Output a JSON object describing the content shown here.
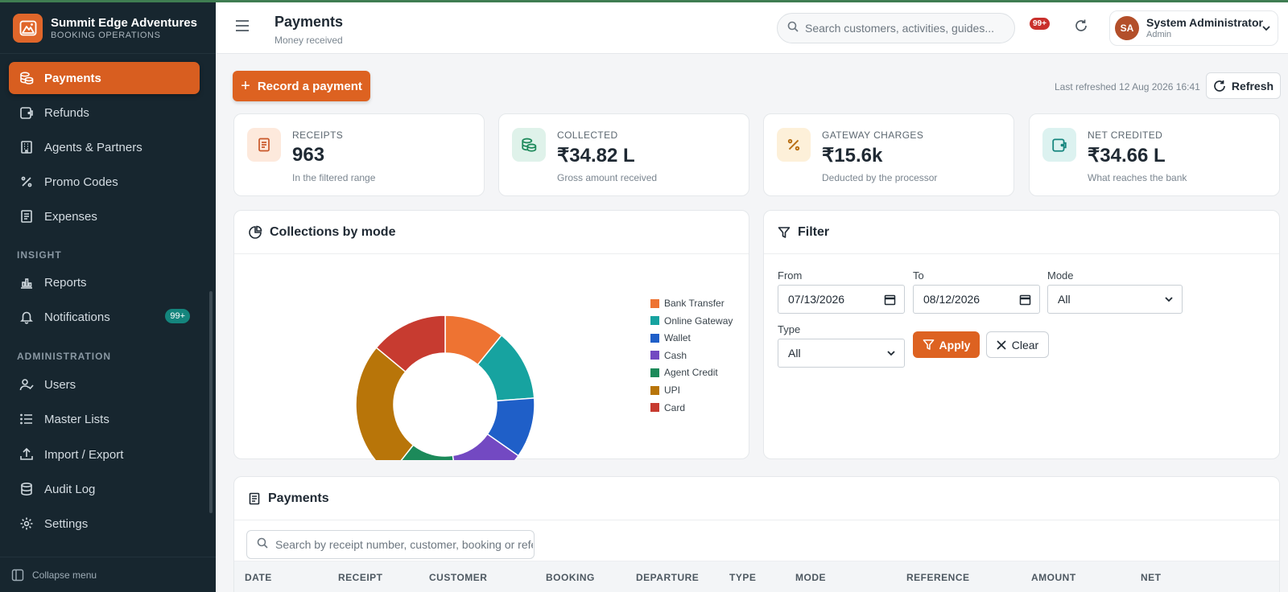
{
  "brand": {
    "name": "Summit Edge Adventures",
    "subtitle": "BOOKING OPERATIONS"
  },
  "sidebar": {
    "items": [
      {
        "label": "Payments",
        "icon": "coins-icon",
        "active": true
      },
      {
        "label": "Refunds",
        "icon": "wallet-icon"
      },
      {
        "label": "Agents & Partners",
        "icon": "building-icon"
      },
      {
        "label": "Promo Codes",
        "icon": "percent-icon"
      },
      {
        "label": "Expenses",
        "icon": "receipt-icon"
      }
    ],
    "insight_label": "INSIGHT",
    "insight_items": [
      {
        "label": "Reports",
        "icon": "bar-chart-icon"
      },
      {
        "label": "Notifications",
        "icon": "bell-icon",
        "badge": "99+"
      }
    ],
    "admin_label": "ADMINISTRATION",
    "admin_items": [
      {
        "label": "Users",
        "icon": "user-check-icon"
      },
      {
        "label": "Master Lists",
        "icon": "list-icon"
      },
      {
        "label": "Import / Export",
        "icon": "upload-icon"
      },
      {
        "label": "Audit Log",
        "icon": "database-icon"
      },
      {
        "label": "Settings",
        "icon": "gear-icon"
      }
    ],
    "collapse_label": "Collapse menu"
  },
  "header": {
    "title": "Payments",
    "subtitle": "Money received",
    "search_placeholder": "Search customers, activities, guides...",
    "notification_badge": "99+",
    "user": {
      "initials": "SA",
      "name": "System Administrator",
      "role": "Admin"
    }
  },
  "toolbar": {
    "record_label": "Record a payment",
    "last_refreshed": "Last refreshed 12 Aug 2026 16:41",
    "refresh_label": "Refresh"
  },
  "stats": [
    {
      "label": "RECEIPTS",
      "value": "963",
      "note": "In the filtered range",
      "icon": "receipt-icon",
      "bg": "#fde9dc",
      "fg": "#c9582a"
    },
    {
      "label": "COLLECTED",
      "value": "₹34.82 L",
      "note": "Gross amount received",
      "icon": "coins-icon",
      "bg": "#dff2ea",
      "fg": "#1f8a5c"
    },
    {
      "label": "GATEWAY CHARGES",
      "value": "₹15.6k",
      "note": "Deducted by the processor",
      "icon": "percent-icon",
      "bg": "#fdf0d9",
      "fg": "#b86d12"
    },
    {
      "label": "NET CREDITED",
      "value": "₹34.66 L",
      "note": "What reaches the bank",
      "icon": "wallet-icon",
      "bg": "#dcf2f0",
      "fg": "#14857d"
    }
  ],
  "chart_panel": {
    "title": "Collections by mode"
  },
  "chart_data": {
    "type": "pie",
    "title": "Collections by mode",
    "categories": [
      "Bank Transfer",
      "Online Gateway",
      "Wallet",
      "Cash",
      "Agent Credit",
      "UPI",
      "Card"
    ],
    "values": [
      10.5,
      12.5,
      10.5,
      12.5,
      12.5,
      24.5,
      13.5
    ],
    "colors": [
      "#ee7332",
      "#17a3a0",
      "#1f5fc8",
      "#7349c2",
      "#1c8a5a",
      "#b87509",
      "#c73b30"
    ],
    "legend": "right"
  },
  "filter": {
    "title": "Filter",
    "from_label": "From",
    "from_value": "07/13/2026",
    "to_label": "To",
    "to_value": "08/12/2026",
    "mode_label": "Mode",
    "mode_value": "All",
    "type_label": "Type",
    "type_value": "All",
    "apply_label": "Apply",
    "clear_label": "Clear"
  },
  "table": {
    "title": "Payments",
    "search_placeholder": "Search by receipt number, customer, booking or reference",
    "columns": [
      "DATE",
      "RECEIPT",
      "CUSTOMER",
      "BOOKING",
      "DEPARTURE",
      "TYPE",
      "MODE",
      "REFERENCE",
      "AMOUNT",
      "NET"
    ]
  }
}
